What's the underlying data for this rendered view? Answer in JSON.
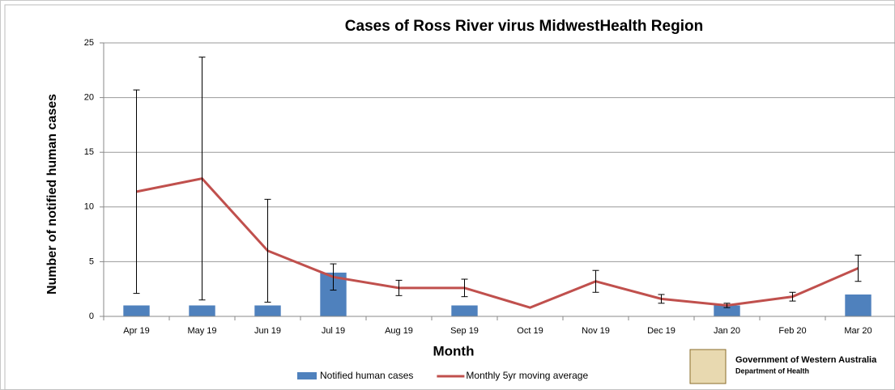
{
  "chart_data": {
    "type": "bar",
    "title": "Cases of Ross River virus     MidwestHealth Region",
    "x_label": "Month",
    "y_label": "Number of notified human cases",
    "categories": [
      "Apr 19",
      "May 19",
      "Jun 19",
      "Jul 19",
      "Aug 19",
      "Sep 19",
      "Oct 19",
      "Nov 19",
      "Dec 19",
      "Jan 20",
      "Feb 20",
      "Mar 20"
    ],
    "series": [
      {
        "name": "Notified human cases",
        "type": "bar",
        "color": "#4f81bd",
        "values": [
          1,
          1,
          1,
          4,
          0,
          1,
          0,
          0,
          0,
          1,
          0,
          2
        ]
      },
      {
        "name": "Monthly 5yr moving average",
        "type": "line",
        "color": "#c0504d",
        "values": [
          11.4,
          12.6,
          6.0,
          3.6,
          2.6,
          2.6,
          0.8,
          3.2,
          1.6,
          1.0,
          1.8,
          4.4
        ],
        "errors": [
          9.3,
          11.1,
          4.7,
          1.2,
          0.7,
          0.8,
          null,
          1.0,
          0.4,
          0.2,
          0.4,
          1.2
        ]
      }
    ],
    "ylim": [
      0,
      25
    ],
    "yticks": [
      0,
      5,
      10,
      15,
      20,
      25
    ],
    "grid": true,
    "legend": "bottom"
  },
  "logo": {
    "line1": "Government of Western Australia",
    "line2": "Department of Health"
  }
}
